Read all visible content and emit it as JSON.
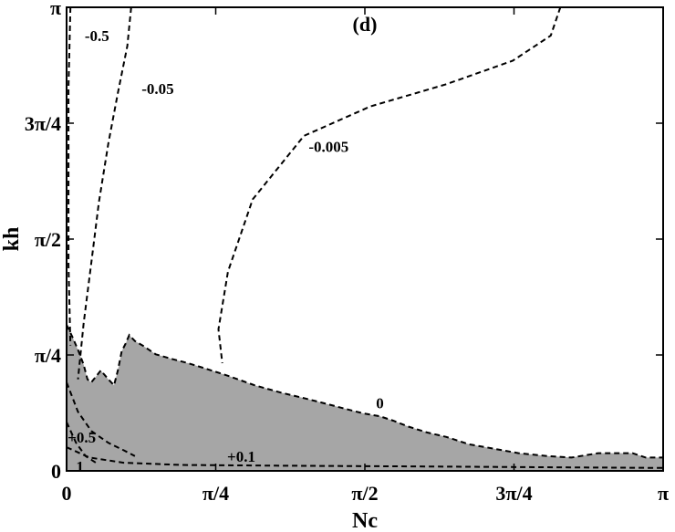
{
  "chart_data": {
    "type": "contour",
    "panel_label": "(d)",
    "xlabel": "Nc",
    "ylabel": "kh",
    "xlim": [
      0,
      3.1416
    ],
    "ylim": [
      0,
      3.1416
    ],
    "xticks": [
      {
        "value": 0,
        "label": "0"
      },
      {
        "value": 0.7854,
        "label": "π/4"
      },
      {
        "value": 1.5708,
        "label": "π/2"
      },
      {
        "value": 2.3562,
        "label": "3π/4"
      },
      {
        "value": 3.1416,
        "label": "π"
      }
    ],
    "yticks": [
      {
        "value": 0,
        "label": "0"
      },
      {
        "value": 0.7854,
        "label": "π/4"
      },
      {
        "value": 1.5708,
        "label": "π/2"
      },
      {
        "value": 2.3562,
        "label": "3π/4"
      },
      {
        "value": 3.1416,
        "label": "π"
      }
    ],
    "shaded_region_color": "#a6a6a6",
    "shaded_region": [
      [
        0,
        0
      ],
      [
        0,
        0.99
      ],
      [
        0.03,
        0.91
      ],
      [
        0.06,
        0.82
      ],
      [
        0.09,
        0.72
      ],
      [
        0.11,
        0.62
      ],
      [
        0.13,
        0.6
      ],
      [
        0.18,
        0.68
      ],
      [
        0.22,
        0.62
      ],
      [
        0.25,
        0.58
      ],
      [
        0.27,
        0.68
      ],
      [
        0.29,
        0.81
      ],
      [
        0.31,
        0.86
      ],
      [
        0.33,
        0.92
      ],
      [
        0.36,
        0.88
      ],
      [
        0.4,
        0.85
      ],
      [
        0.47,
        0.79
      ],
      [
        0.55,
        0.76
      ],
      [
        0.64,
        0.73
      ],
      [
        0.74,
        0.69
      ],
      [
        0.86,
        0.64
      ],
      [
        0.99,
        0.58
      ],
      [
        1.13,
        0.53
      ],
      [
        1.26,
        0.49
      ],
      [
        1.38,
        0.45
      ],
      [
        1.47,
        0.42
      ],
      [
        1.56,
        0.39
      ],
      [
        1.65,
        0.37
      ],
      [
        1.72,
        0.34
      ],
      [
        1.8,
        0.3
      ],
      [
        1.9,
        0.26
      ],
      [
        2.0,
        0.23
      ],
      [
        2.12,
        0.18
      ],
      [
        2.25,
        0.15
      ],
      [
        2.38,
        0.12
      ],
      [
        2.53,
        0.1
      ],
      [
        2.66,
        0.09
      ],
      [
        2.8,
        0.12
      ],
      [
        2.98,
        0.12
      ],
      [
        3.05,
        0.09
      ],
      [
        3.1416,
        0.09
      ],
      [
        3.1416,
        0
      ]
    ],
    "contours": [
      {
        "label": "0",
        "points": [
          [
            0,
            0.99
          ],
          [
            0.03,
            0.91
          ],
          [
            0.06,
            0.82
          ],
          [
            0.09,
            0.72
          ],
          [
            0.11,
            0.62
          ],
          [
            0.13,
            0.6
          ],
          [
            0.18,
            0.68
          ],
          [
            0.22,
            0.62
          ],
          [
            0.25,
            0.58
          ],
          [
            0.27,
            0.68
          ],
          [
            0.29,
            0.81
          ],
          [
            0.31,
            0.86
          ],
          [
            0.33,
            0.92
          ],
          [
            0.36,
            0.88
          ],
          [
            0.4,
            0.85
          ],
          [
            0.47,
            0.79
          ],
          [
            0.55,
            0.76
          ],
          [
            0.64,
            0.73
          ],
          [
            0.74,
            0.69
          ],
          [
            0.86,
            0.64
          ],
          [
            0.99,
            0.58
          ],
          [
            1.13,
            0.53
          ],
          [
            1.26,
            0.49
          ],
          [
            1.38,
            0.45
          ],
          [
            1.47,
            0.42
          ],
          [
            1.56,
            0.39
          ],
          [
            1.65,
            0.37
          ],
          [
            1.72,
            0.34
          ],
          [
            1.8,
            0.3
          ],
          [
            1.9,
            0.26
          ],
          [
            2.0,
            0.23
          ],
          [
            2.12,
            0.18
          ],
          [
            2.25,
            0.15
          ],
          [
            2.38,
            0.12
          ],
          [
            2.53,
            0.1
          ],
          [
            2.66,
            0.09
          ],
          [
            2.8,
            0.12
          ],
          [
            2.98,
            0.12
          ],
          [
            3.05,
            0.09
          ],
          [
            3.1416,
            0.09
          ]
        ]
      },
      {
        "label": "-0.005",
        "points": [
          [
            2.6,
            3.1416
          ],
          [
            2.55,
            2.95
          ],
          [
            2.35,
            2.78
          ],
          [
            2.0,
            2.62
          ],
          [
            1.6,
            2.47
          ],
          [
            1.25,
            2.27
          ],
          [
            0.98,
            1.84
          ],
          [
            0.85,
            1.35
          ],
          [
            0.8,
            0.96
          ],
          [
            0.82,
            0.73
          ]
        ]
      },
      {
        "label": "-0.05",
        "points": [
          [
            0.34,
            3.1416
          ],
          [
            0.32,
            2.88
          ],
          [
            0.27,
            2.56
          ],
          [
            0.22,
            2.22
          ],
          [
            0.17,
            1.82
          ],
          [
            0.13,
            1.41
          ],
          [
            0.09,
            1.0
          ],
          [
            0.06,
            0.62
          ]
        ]
      },
      {
        "label": "-0.5",
        "points": [
          [
            0.02,
            3.1416
          ],
          [
            0.01,
            2.6
          ],
          [
            0.01,
            2.0
          ],
          [
            0.01,
            1.4
          ],
          [
            0.02,
            0.85
          ]
        ]
      },
      {
        "label": "+0.5",
        "points": [
          [
            0.0,
            0.6
          ],
          [
            0.06,
            0.4
          ],
          [
            0.13,
            0.27
          ],
          [
            0.22,
            0.19
          ],
          [
            0.3,
            0.14
          ],
          [
            0.36,
            0.1
          ]
        ]
      },
      {
        "label": "1",
        "points": [
          [
            0.0,
            0.33
          ],
          [
            0.05,
            0.19
          ],
          [
            0.1,
            0.1
          ],
          [
            0.16,
            0.05
          ]
        ]
      },
      {
        "label": "+0.1",
        "points": [
          [
            0.0,
            0.16
          ],
          [
            0.12,
            0.09
          ],
          [
            0.3,
            0.055
          ],
          [
            0.6,
            0.04
          ],
          [
            1.1,
            0.035
          ],
          [
            1.8,
            0.03
          ],
          [
            2.5,
            0.025
          ],
          [
            3.1416,
            0.02
          ]
        ]
      }
    ],
    "contour_labels": [
      {
        "text": "-0.5",
        "x": 0.16,
        "y": 2.95
      },
      {
        "text": "-0.05",
        "x": 0.48,
        "y": 2.59
      },
      {
        "text": "-0.005",
        "x": 1.38,
        "y": 2.2
      },
      {
        "text": "0",
        "x": 1.65,
        "y": 0.46
      },
      {
        "text": "+0.5",
        "x": 0.08,
        "y": 0.23
      },
      {
        "text": "+0.1",
        "x": 0.92,
        "y": 0.1
      },
      {
        "text": "1",
        "x": 0.07,
        "y": 0.03
      }
    ]
  }
}
